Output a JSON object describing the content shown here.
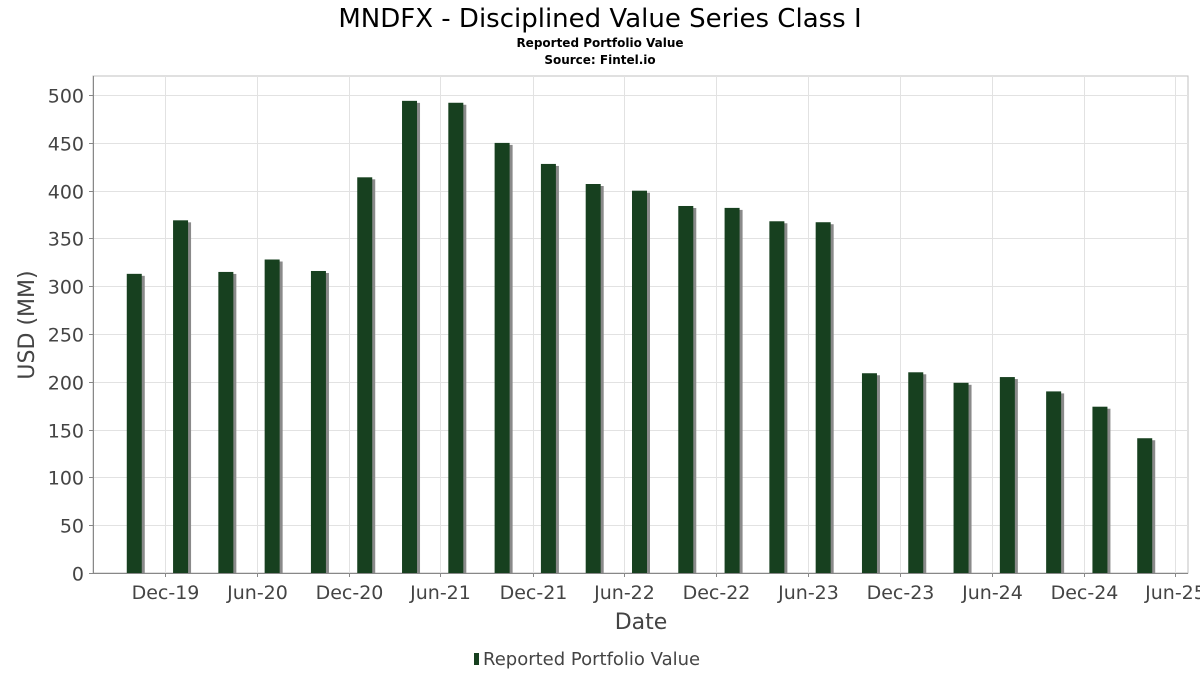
{
  "chart_data": {
    "type": "bar",
    "title": "MNDFX - Disciplined Value Series Class I",
    "subtitle": "Reported Portfolio Value",
    "source": "Source: Fintel.io",
    "xlabel": "Date",
    "ylabel": "USD (MM)",
    "ylim": [
      0,
      520
    ],
    "yticks": [
      0,
      50,
      100,
      150,
      200,
      250,
      300,
      350,
      400,
      450,
      500
    ],
    "xlim": [
      "2019-08-10",
      "2025-07-25"
    ],
    "xticks": [
      {
        "label": "Dec-19",
        "date": "2019-12-31"
      },
      {
        "label": "Jun-20",
        "date": "2020-06-30"
      },
      {
        "label": "Dec-20",
        "date": "2020-12-31"
      },
      {
        "label": "Jun-21",
        "date": "2021-06-30"
      },
      {
        "label": "Dec-21",
        "date": "2021-12-31"
      },
      {
        "label": "Jun-22",
        "date": "2022-06-30"
      },
      {
        "label": "Dec-22",
        "date": "2022-12-31"
      },
      {
        "label": "Jun-23",
        "date": "2023-06-30"
      },
      {
        "label": "Dec-23",
        "date": "2023-12-31"
      },
      {
        "label": "Jun-24",
        "date": "2024-06-30"
      },
      {
        "label": "Dec-24",
        "date": "2024-12-31"
      },
      {
        "label": "Jun-25",
        "date": "2025-06-30"
      }
    ],
    "grid": true,
    "legend": "bottom-center",
    "series": [
      {
        "name": "Reported Portfolio Value",
        "color": "#17401f",
        "shadow_color": "#8a8a8a",
        "points": [
          {
            "date": "2019-10-31",
            "value": 313
          },
          {
            "date": "2020-01-31",
            "value": 369
          },
          {
            "date": "2020-04-30",
            "value": 315
          },
          {
            "date": "2020-07-31",
            "value": 328
          },
          {
            "date": "2020-10-31",
            "value": 316
          },
          {
            "date": "2021-01-31",
            "value": 414
          },
          {
            "date": "2021-04-30",
            "value": 494
          },
          {
            "date": "2021-07-31",
            "value": 492
          },
          {
            "date": "2021-10-31",
            "value": 450
          },
          {
            "date": "2022-01-31",
            "value": 428
          },
          {
            "date": "2022-04-30",
            "value": 407
          },
          {
            "date": "2022-07-31",
            "value": 400
          },
          {
            "date": "2022-10-31",
            "value": 384
          },
          {
            "date": "2023-01-31",
            "value": 382
          },
          {
            "date": "2023-04-30",
            "value": 368
          },
          {
            "date": "2023-07-31",
            "value": 367
          },
          {
            "date": "2023-10-31",
            "value": 209
          },
          {
            "date": "2024-01-31",
            "value": 210
          },
          {
            "date": "2024-04-30",
            "value": 199
          },
          {
            "date": "2024-07-31",
            "value": 205
          },
          {
            "date": "2024-10-31",
            "value": 190
          },
          {
            "date": "2025-01-31",
            "value": 174
          },
          {
            "date": "2025-04-30",
            "value": 141
          }
        ]
      }
    ]
  }
}
